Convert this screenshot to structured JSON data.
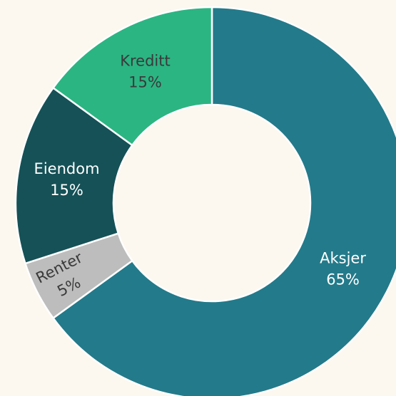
{
  "chart_data": {
    "type": "donut",
    "categories": [
      "Aksjer",
      "Renter",
      "Eiendom",
      "Kreditt"
    ],
    "values": [
      65,
      5,
      15,
      15
    ],
    "value_labels": [
      "65%",
      "5%",
      "15%",
      "15%"
    ],
    "colors": [
      "#237a8a",
      "#bdbdbd",
      "#155157",
      "#2bb583"
    ],
    "label_colors": [
      "#ffffff",
      "#3a3a3a",
      "#ffffff",
      "#3a3a3a"
    ]
  }
}
